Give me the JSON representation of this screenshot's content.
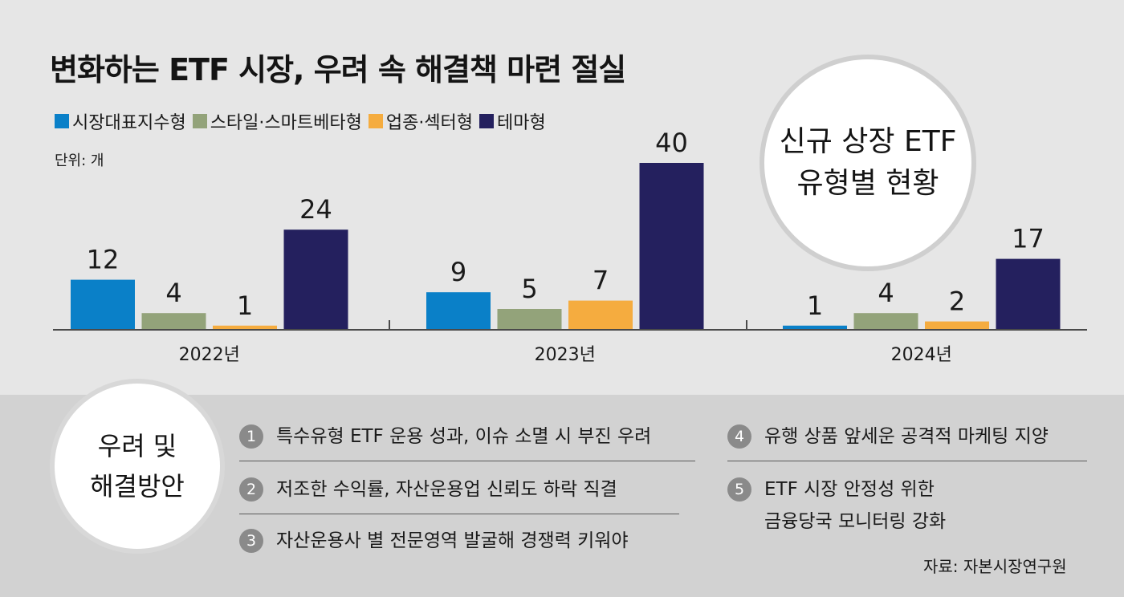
{
  "title": "변화하는 ETF 시장, 우려 속 해결책 마련 절실",
  "unit": "단위: 개",
  "badge": {
    "line1": "신규 상장 ETF",
    "line2": "유형별 현황"
  },
  "colors": {
    "market": "#0a80c8",
    "style": "#93a37a",
    "sector": "#f5ac3f",
    "theme": "#24205e",
    "axis": "#4a4a4a"
  },
  "chart_data": {
    "type": "bar",
    "categories": [
      "2022년",
      "2023년",
      "2024년"
    ],
    "series": [
      {
        "name": "시장대표지수형",
        "values": [
          12,
          9,
          1
        ]
      },
      {
        "name": "스타일·스마트베타형",
        "values": [
          4,
          5,
          4
        ]
      },
      {
        "name": "업종·섹터형",
        "values": [
          1,
          7,
          2
        ]
      },
      {
        "name": "테마형",
        "values": [
          24,
          40,
          17
        ]
      }
    ],
    "ylim": [
      0,
      40
    ],
    "grid": false,
    "legend": "top-left"
  },
  "solutions": {
    "heading_line1": "우려 및",
    "heading_line2": "해결방안",
    "items": [
      {
        "num": "1",
        "lines": [
          "특수유형 ETF 운용 성과, 이슈 소멸 시 부진 우려"
        ]
      },
      {
        "num": "2",
        "lines": [
          "저조한 수익률, 자산운용업 신뢰도 하락 직결"
        ]
      },
      {
        "num": "3",
        "lines": [
          "자산운용사 별 전문영역 발굴해 경쟁력 키워야"
        ]
      },
      {
        "num": "4",
        "lines": [
          "유행 상품 앞세운 공격적 마케팅 지양"
        ]
      },
      {
        "num": "5",
        "lines": [
          "ETF 시장 안정성 위한",
          "금융당국 모니터링 강화"
        ]
      }
    ]
  },
  "source": "자료: 자본시장연구원"
}
